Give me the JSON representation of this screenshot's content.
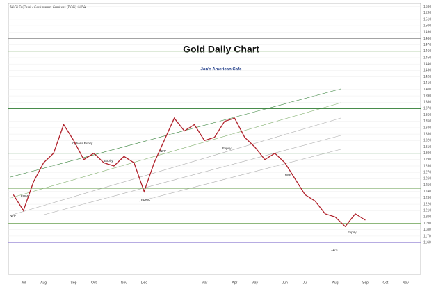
{
  "chart_data": {
    "type": "line",
    "title": "Gold Daily Chart",
    "subtitle": "$GOLD (Gold - Continuous Contract (EOD) ©ISA",
    "logo": "Jon's American Cafe",
    "categories": [
      null,
      "Jul",
      null,
      "Aug",
      null,
      null,
      "Sep",
      null,
      "Oct",
      null,
      null,
      "Nov",
      null,
      "Dec",
      null,
      null,
      null,
      null,
      null,
      "Mar",
      null,
      null,
      "Apr",
      null,
      "May",
      null,
      null,
      "Jun",
      null,
      "Jul",
      null,
      null,
      "Aug",
      null,
      null,
      "Sep",
      null,
      "Oct",
      null,
      "Nov",
      null
    ],
    "series": [
      {
        "name": "Gold",
        "color": "#b0202a",
        "values": [
          1235,
          1210,
          1255,
          1285,
          1300,
          1345,
          1320,
          1290,
          1300,
          1285,
          1280,
          1295,
          1285,
          1240,
          1285,
          1320,
          1355,
          1335,
          1345,
          1320,
          1325,
          1350,
          1355,
          1325,
          1310,
          1290,
          1300,
          1285,
          1260,
          1235,
          1225,
          1205,
          1200,
          1185,
          1205,
          1195,
          null,
          null,
          null,
          null,
          null
        ]
      }
    ],
    "ylim": [
      1110,
      1535
    ],
    "yticks": [
      1160,
      1170,
      1180,
      1190,
      1200,
      1210,
      1220,
      1230,
      1240,
      1250,
      1260,
      1270,
      1280,
      1290,
      1300,
      1310,
      1320,
      1330,
      1340,
      1350,
      1360,
      1370,
      1380,
      1390,
      1400,
      1410,
      1420,
      1430,
      1440,
      1450,
      1460,
      1470,
      1480,
      1490,
      1500,
      1510,
      1520,
      1530
    ],
    "levels": [
      {
        "value": 1480,
        "color": "#999999"
      },
      {
        "value": 1460,
        "color": "#7fae6a"
      },
      {
        "value": 1370,
        "color": "#2e7d32"
      },
      {
        "value": 1300,
        "color": "#2e7d32"
      },
      {
        "value": 1245,
        "color": "#7fae6a"
      },
      {
        "value": 1200,
        "color": "#999999"
      },
      {
        "value": 1190,
        "color": "#7fae6a"
      },
      {
        "value": 1160,
        "color": "#8c7ad0"
      }
    ],
    "annotations": [
      "NFP",
      "FOMC",
      "Options Expiry",
      "Expiry",
      "FOMC",
      "NFP",
      "Expiry",
      "NFP",
      "Expiry",
      "1174"
    ],
    "grid": true
  }
}
